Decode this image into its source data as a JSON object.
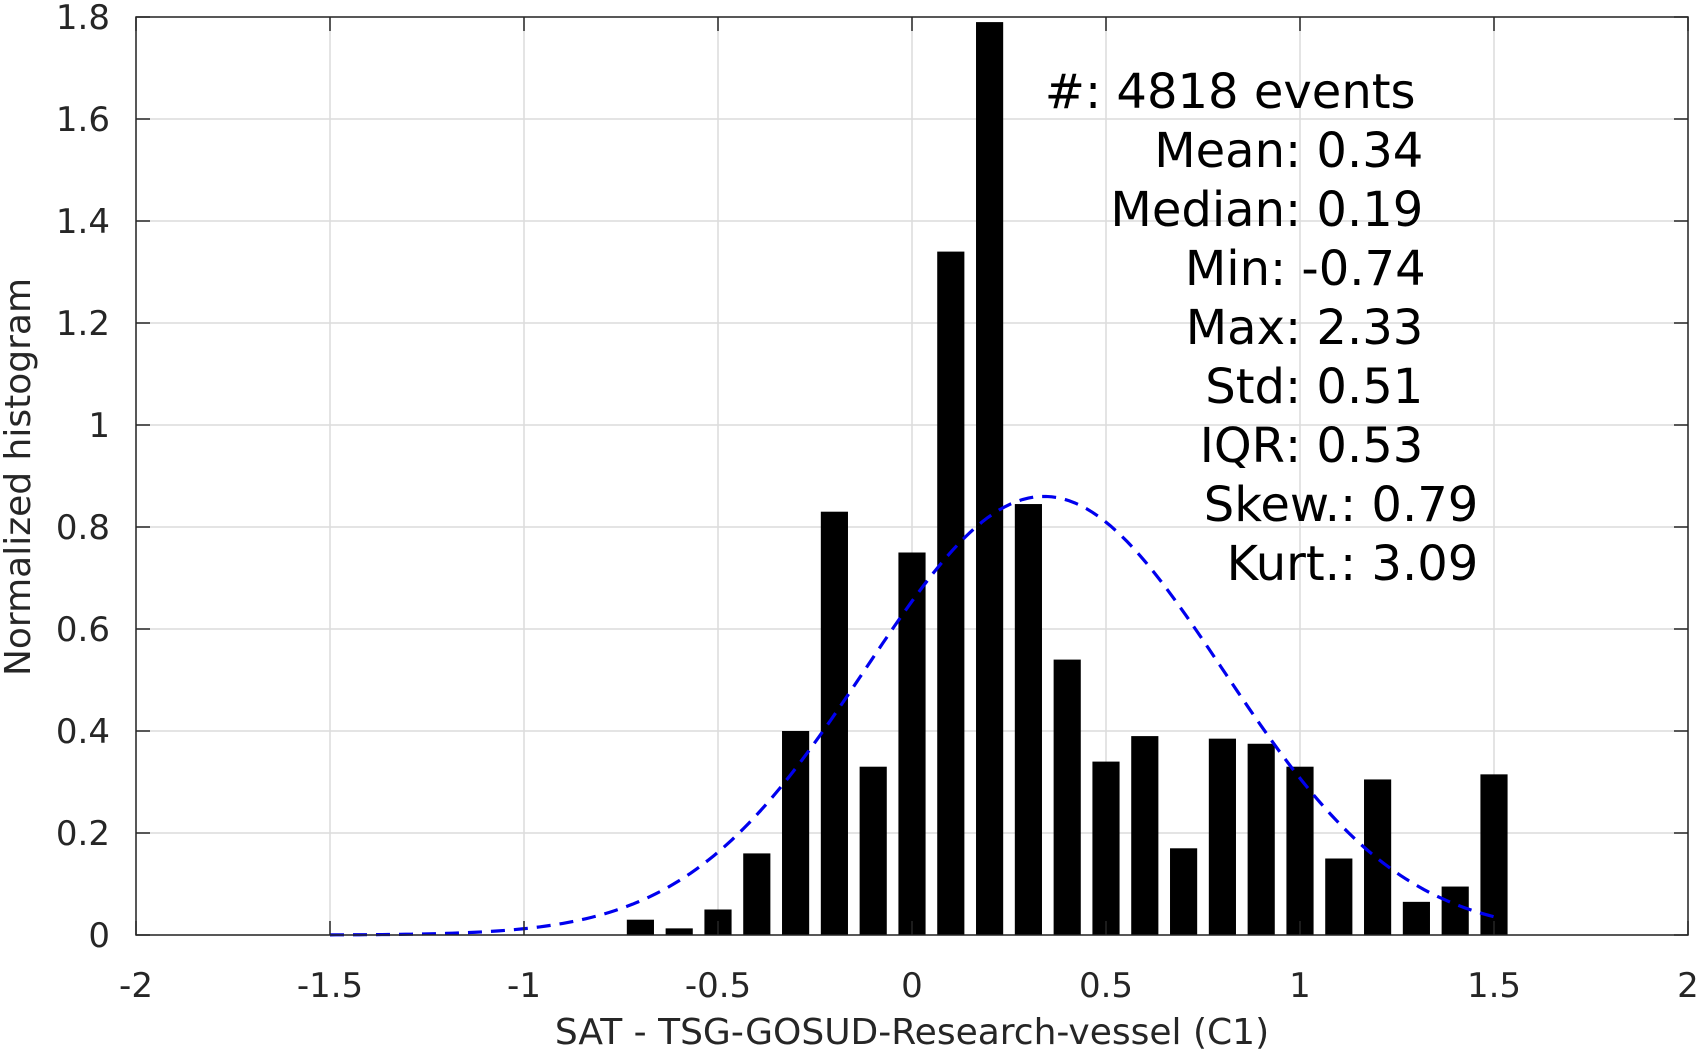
{
  "chart_data": {
    "type": "bar",
    "xlabel": "SAT - TSG-GOSUD-Research-vessel (C1)",
    "ylabel": "Normalized histogram",
    "xlim": [
      -2,
      2
    ],
    "ylim": [
      0,
      1.8
    ],
    "xticks": [
      -2,
      -1.5,
      -1,
      -0.5,
      0,
      0.5,
      1,
      1.5,
      2
    ],
    "xtick_labels": [
      "-2",
      "-1.5",
      "-1",
      "-0.5",
      "0",
      "0.5",
      "1",
      "1.5",
      "2"
    ],
    "yticks": [
      0,
      0.2,
      0.4,
      0.6,
      0.8,
      1,
      1.2,
      1.4,
      1.6,
      1.8
    ],
    "ytick_labels": [
      "0",
      "0.2",
      "0.4",
      "0.6",
      "0.8",
      "1",
      "1.2",
      "1.4",
      "1.6",
      "1.8"
    ],
    "grid": true,
    "bar_width": 0.07,
    "bars": {
      "x": [
        -0.7,
        -0.6,
        -0.5,
        -0.4,
        -0.3,
        -0.2,
        -0.1,
        0.0,
        0.1,
        0.2,
        0.3,
        0.4,
        0.5,
        0.6,
        0.7,
        0.8,
        0.9,
        1.0,
        1.1,
        1.2,
        1.3,
        1.4,
        1.5
      ],
      "values": [
        0.03,
        0.013,
        0.05,
        0.16,
        0.4,
        0.83,
        0.33,
        0.75,
        1.34,
        1.79,
        0.845,
        0.54,
        0.34,
        0.39,
        0.17,
        0.385,
        0.375,
        0.33,
        0.15,
        0.305,
        0.065,
        0.095,
        0.315
      ],
      "color": "#000000"
    },
    "fit_curve": {
      "style": "dashed",
      "color": "#0000ee",
      "mean": 0.34,
      "std": 0.46,
      "peak": 0.86,
      "x_range": [
        -1.5,
        1.5
      ]
    },
    "stats": [
      {
        "label": "#",
        "sep": " : ",
        "value": "4818 events"
      },
      {
        "label": "Mean",
        "sep": " : ",
        "value": "0.34"
      },
      {
        "label": "Median",
        "sep": " : ",
        "value": "0.19"
      },
      {
        "label": "Min",
        "sep": " : ",
        "value": "-0.74"
      },
      {
        "label": "Max",
        "sep": " : ",
        "value": "2.33"
      },
      {
        "label": "Std",
        "sep": " : ",
        "value": "0.51"
      },
      {
        "label": "IQR",
        "sep": " : ",
        "value": "0.53"
      },
      {
        "label": "Skew.",
        "sep": " : ",
        "value": "0.79"
      },
      {
        "label": "Kurt.",
        "sep": " : ",
        "value": "3.09"
      }
    ]
  }
}
